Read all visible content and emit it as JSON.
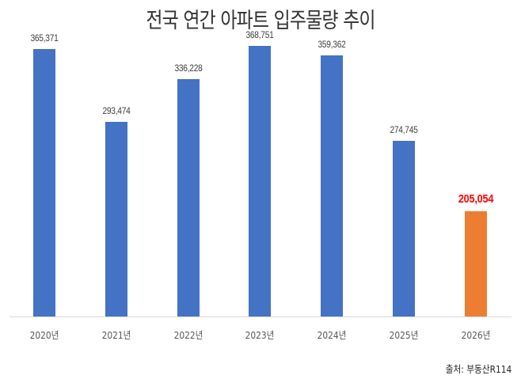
{
  "chart_data": {
    "type": "bar",
    "title": "전국 연간 아파트 입주물량 추이",
    "categories": [
      "2020년",
      "2021년",
      "2022년",
      "2023년",
      "2024년",
      "2025년",
      "2026년"
    ],
    "values": [
      365371,
      293474,
      336228,
      368751,
      359362,
      274745,
      205054
    ],
    "value_labels": [
      "365,371",
      "293,474",
      "336,228",
      "368,751",
      "359,362",
      "274,745",
      "205,054"
    ],
    "xlabel": "",
    "ylabel": "",
    "ylim": [
      100000,
      380000
    ],
    "grid": false,
    "legend": null,
    "colors": [
      "#4472c4",
      "#4472c4",
      "#4472c4",
      "#4472c4",
      "#4472c4",
      "#4472c4",
      "#ed7d31"
    ],
    "highlight_index": 6,
    "highlight_label_color": "#ff0000",
    "source": "출처: 부동산R114"
  }
}
